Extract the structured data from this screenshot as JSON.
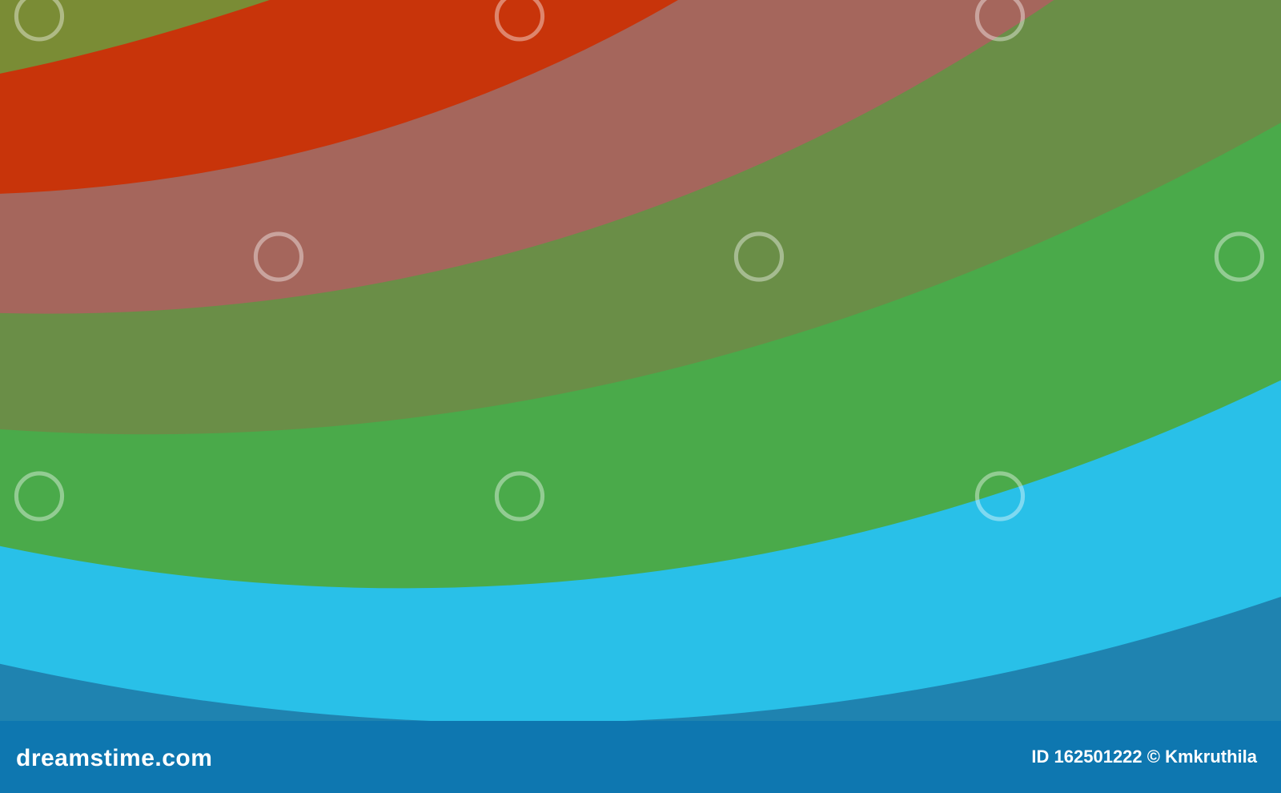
{
  "colors": {
    "olive": "#7a8c35",
    "red": "#c8340a",
    "rosy": "#a5665c",
    "dark_green": "#6a8e47",
    "green": "#4aaa4a",
    "cyan": "#29c0e8",
    "blue": "#1f83b0",
    "footer": "#0e77b0"
  },
  "watermark": "dreamstime",
  "footer": {
    "brand": "dreamstime.com",
    "credit": "ID 162501222 © Kmkruthila"
  }
}
